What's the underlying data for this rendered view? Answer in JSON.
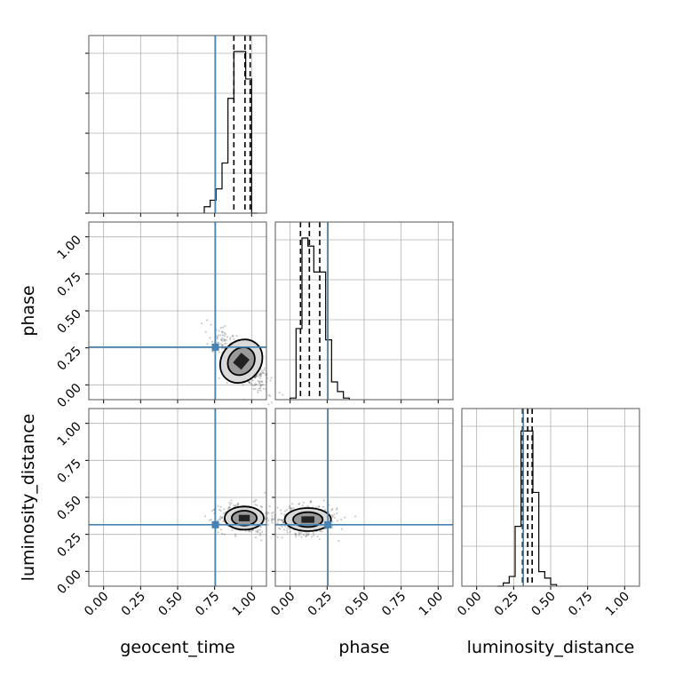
{
  "chart_data": {
    "type": "corner",
    "parameters": [
      "geocent_time",
      "phase",
      "luminosity_distance"
    ],
    "axis_range": [
      -0.1,
      1.1
    ],
    "ticks": [
      0.0,
      0.25,
      0.5,
      0.75,
      1.0
    ],
    "tick_labels": [
      "0.00",
      "0.25",
      "0.50",
      "0.75",
      "1.00"
    ],
    "grid": true,
    "truths": {
      "geocent_time": 0.755,
      "phase": 0.255,
      "luminosity_distance": 0.315
    },
    "truth_color": "#4682b4",
    "histograms": [
      {
        "parameter": "geocent_time",
        "bin_edges": [
          0.68,
          0.72,
          0.76,
          0.8,
          0.84,
          0.88,
          0.92,
          0.96,
          1.0,
          1.04
        ],
        "counts": [
          0.04,
          0.08,
          0.15,
          0.31,
          0.71,
          1.0,
          1.0,
          0.83,
          0.0
        ],
        "quantiles": [
          0.88,
          0.955,
          0.99
        ]
      },
      {
        "parameter": "phase",
        "bin_edges": [
          0.0,
          0.04,
          0.08,
          0.12,
          0.16,
          0.2,
          0.24,
          0.28,
          0.32,
          0.36,
          0.4
        ],
        "counts": [
          0.01,
          0.44,
          1.0,
          0.95,
          0.79,
          0.79,
          0.37,
          0.11,
          0.05,
          0.01
        ],
        "quantiles": [
          0.07,
          0.13,
          0.2
        ]
      },
      {
        "parameter": "luminosity_distance",
        "bin_edges": [
          0.14,
          0.18,
          0.22,
          0.26,
          0.3,
          0.34,
          0.38,
          0.42,
          0.46,
          0.5,
          0.54
        ],
        "counts": [
          0.0,
          0.02,
          0.06,
          0.37,
          0.96,
          0.96,
          0.58,
          0.09,
          0.05,
          0.01
        ],
        "quantiles": [
          0.31,
          0.345,
          0.375
        ]
      }
    ],
    "density_panels": [
      {
        "x": "geocent_time",
        "y": "phase",
        "center": [
          0.93,
          0.16
        ]
      },
      {
        "x": "geocent_time",
        "y": "luminosity_distance",
        "center": [
          0.95,
          0.36
        ]
      },
      {
        "x": "phase",
        "y": "luminosity_distance",
        "center": [
          0.12,
          0.35
        ]
      }
    ]
  }
}
